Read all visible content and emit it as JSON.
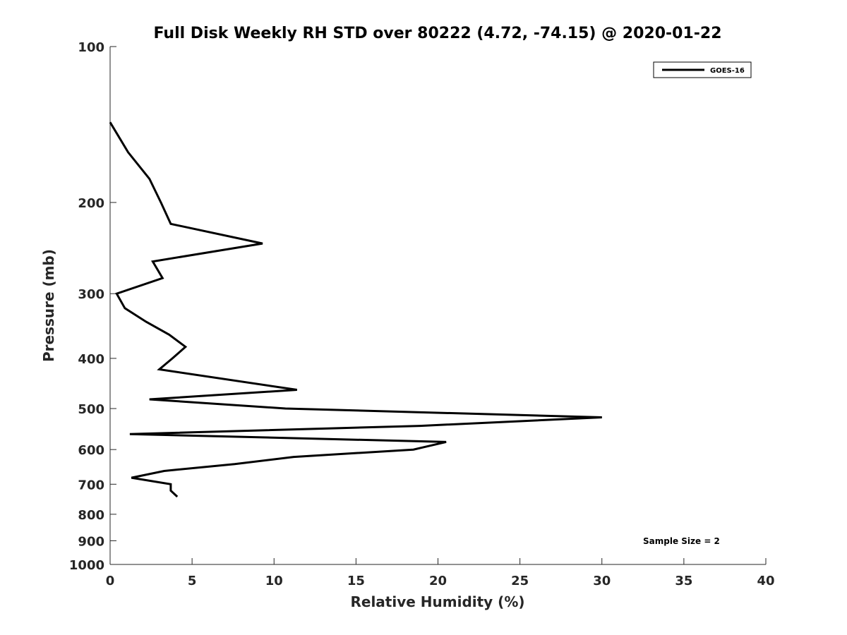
{
  "chart_data": {
    "type": "line",
    "title": "Full Disk Weekly RH STD over 80222 (4.72, -74.15) @ 2020-01-22",
    "xlabel": "Relative Humidity (%)",
    "ylabel": "Pressure (mb)",
    "xlim": [
      0,
      40
    ],
    "ylim": [
      100,
      1000
    ],
    "y_scale": "log",
    "y_reversed": true,
    "x_ticks": [
      0,
      5,
      10,
      15,
      20,
      25,
      30,
      35,
      40
    ],
    "x_tick_labels": [
      "0",
      "5",
      "10",
      "15",
      "20",
      "25",
      "30",
      "35",
      "40"
    ],
    "y_ticks": [
      100,
      200,
      300,
      400,
      500,
      600,
      700,
      800,
      900,
      1000
    ],
    "y_tick_labels": [
      "100",
      "200",
      "300",
      "400",
      "500",
      "600",
      "700",
      "800",
      "900",
      "1000"
    ],
    "grid": false,
    "legend_position": "top-right",
    "series": [
      {
        "name": "GOES-16",
        "color": "#000000",
        "points": [
          {
            "x": 0.0,
            "p": 140
          },
          {
            "x": 1.1,
            "p": 160
          },
          {
            "x": 2.4,
            "p": 180
          },
          {
            "x": 3.1,
            "p": 200
          },
          {
            "x": 3.7,
            "p": 220
          },
          {
            "x": 9.3,
            "p": 240
          },
          {
            "x": 2.6,
            "p": 260
          },
          {
            "x": 3.2,
            "p": 280
          },
          {
            "x": 0.4,
            "p": 300
          },
          {
            "x": 0.9,
            "p": 320
          },
          {
            "x": 2.2,
            "p": 340
          },
          {
            "x": 3.6,
            "p": 360
          },
          {
            "x": 4.6,
            "p": 380
          },
          {
            "x": 3.8,
            "p": 400
          },
          {
            "x": 3.0,
            "p": 420
          },
          {
            "x": 11.4,
            "p": 460
          },
          {
            "x": 2.4,
            "p": 480
          },
          {
            "x": 10.7,
            "p": 500
          },
          {
            "x": 30.0,
            "p": 520
          },
          {
            "x": 18.9,
            "p": 540
          },
          {
            "x": 1.2,
            "p": 560
          },
          {
            "x": 20.5,
            "p": 580
          },
          {
            "x": 18.5,
            "p": 600
          },
          {
            "x": 11.2,
            "p": 620
          },
          {
            "x": 7.6,
            "p": 640
          },
          {
            "x": 3.3,
            "p": 660
          },
          {
            "x": 1.3,
            "p": 680
          },
          {
            "x": 3.7,
            "p": 700
          },
          {
            "x": 3.7,
            "p": 720
          },
          {
            "x": 4.1,
            "p": 740
          }
        ]
      }
    ],
    "annotations": [
      "Sample Size = 2"
    ]
  }
}
